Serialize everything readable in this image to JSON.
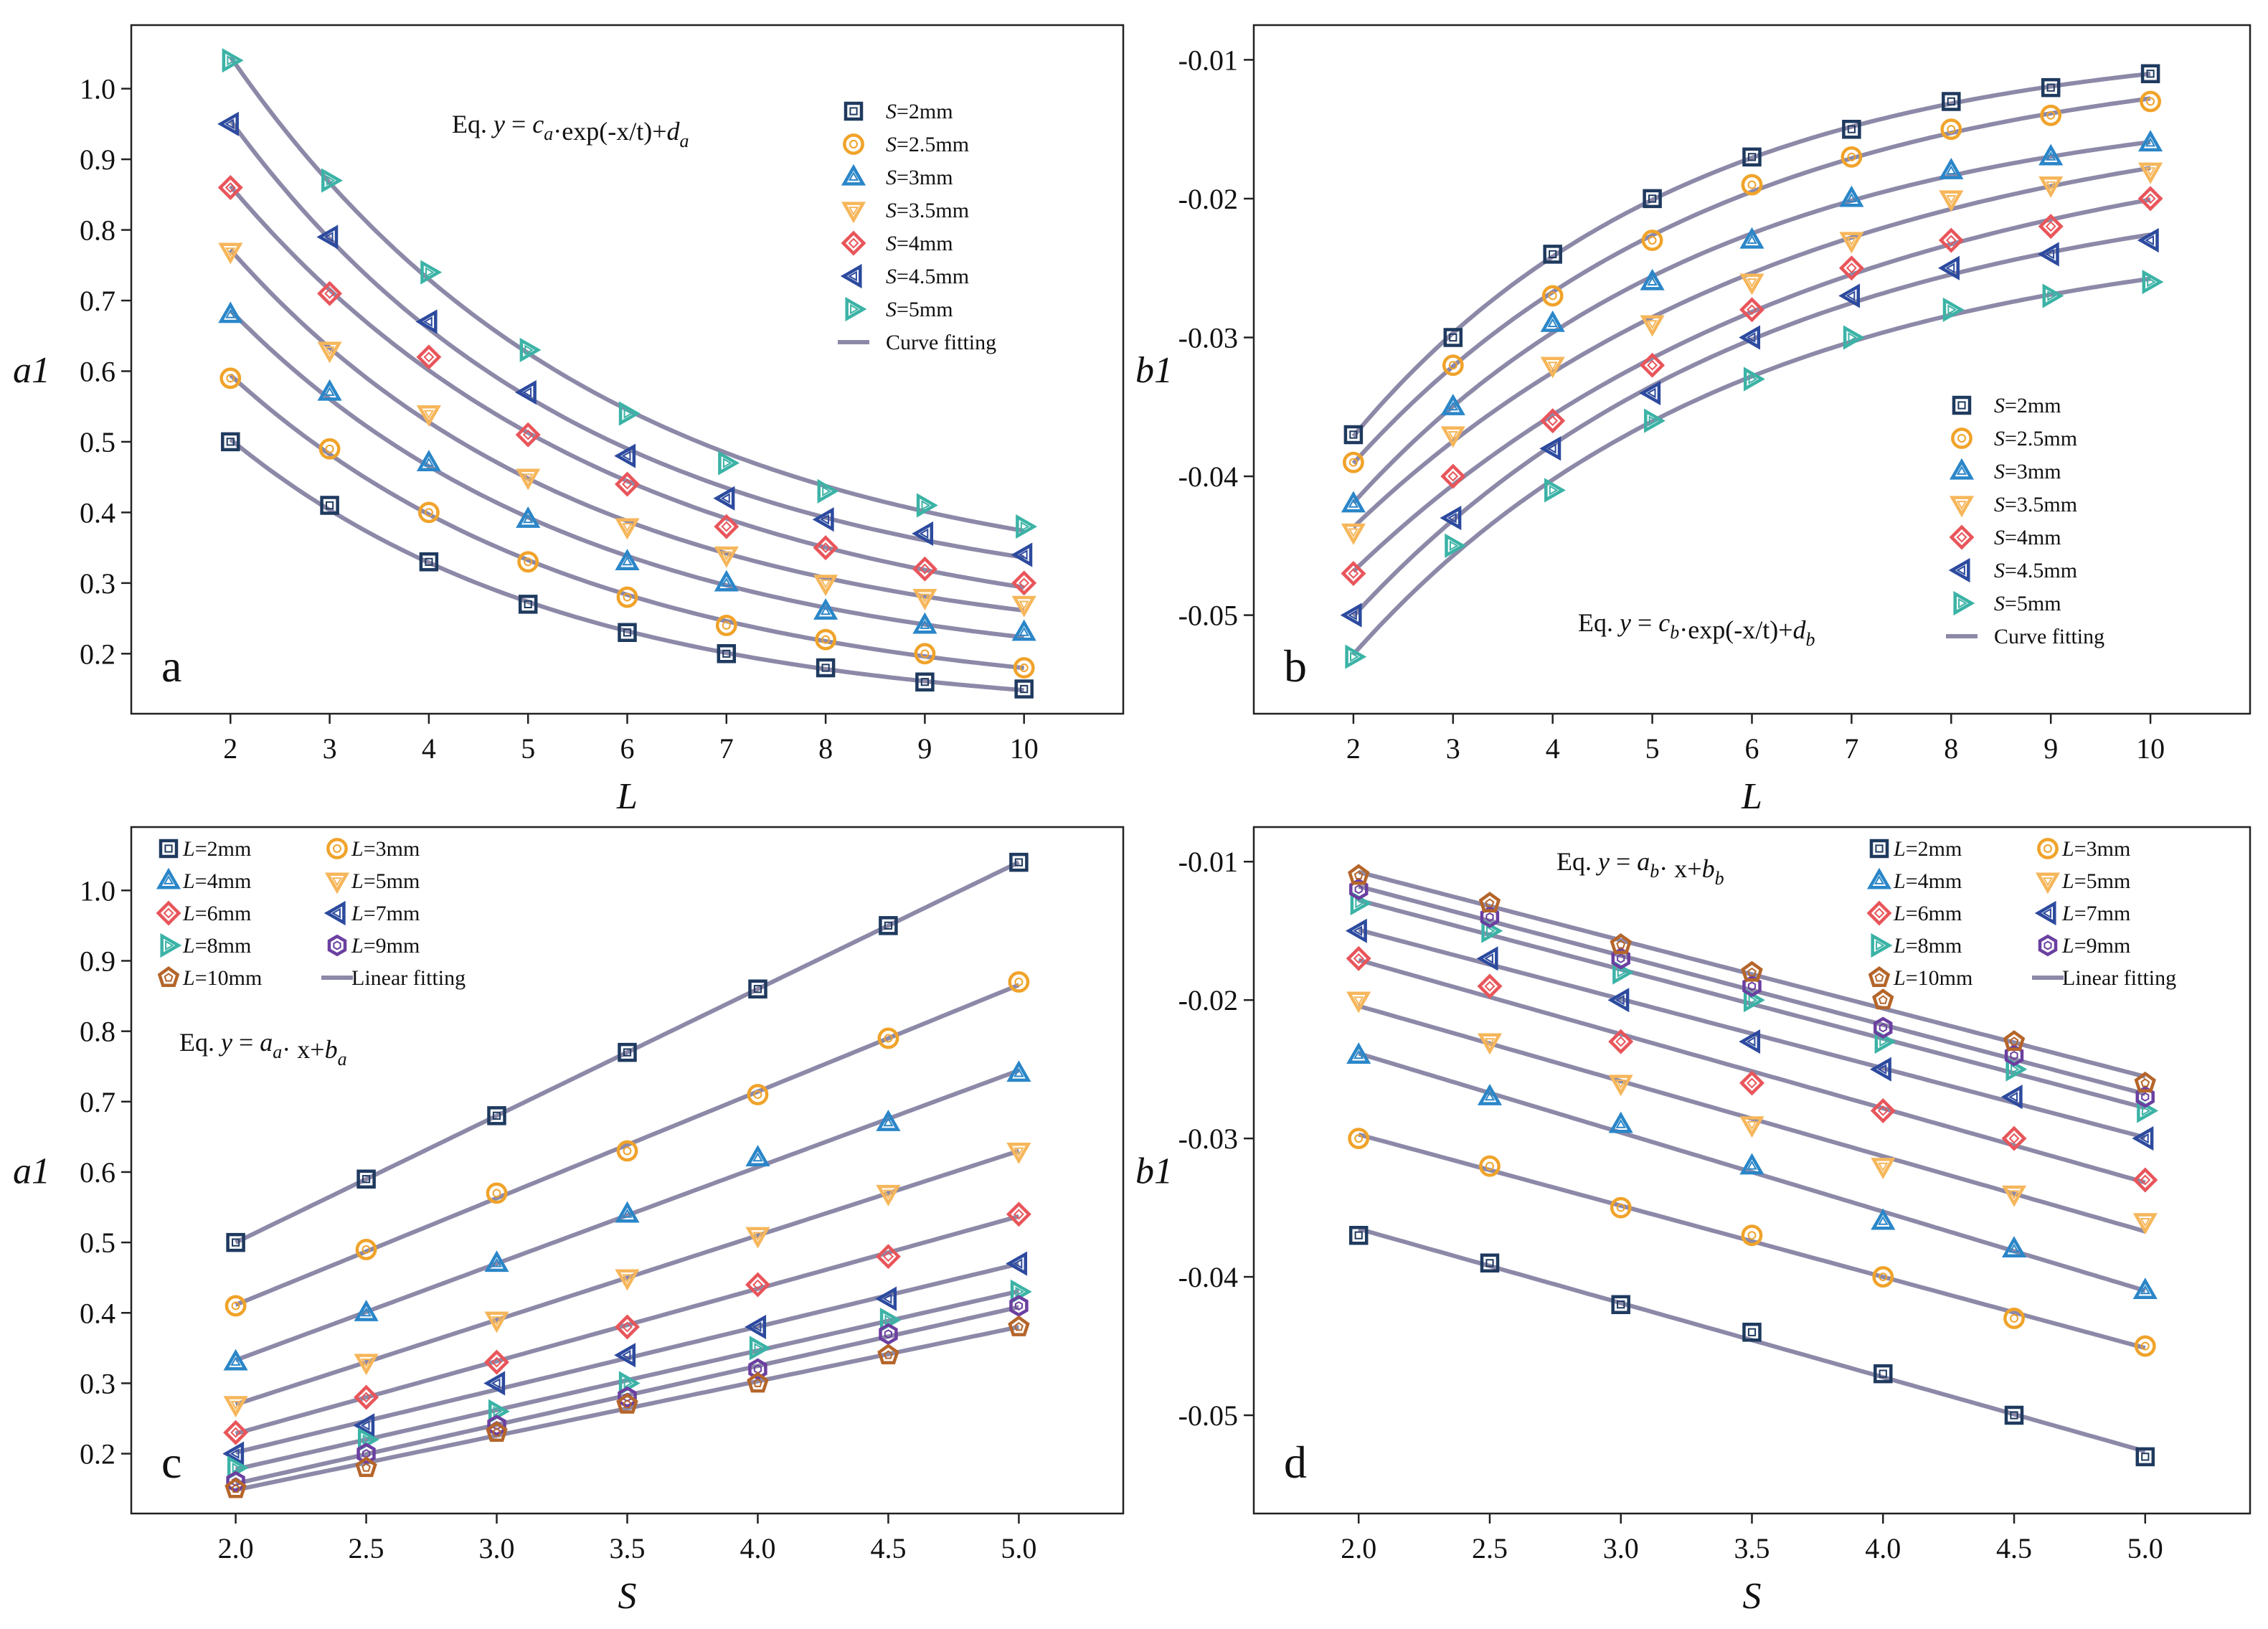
{
  "chart_data": [
    {
      "id": "a",
      "type": "scatter",
      "letter": "a",
      "xlabel": "L",
      "ylabel": "a1",
      "xlim": [
        1,
        11
      ],
      "ylim": [
        0.115,
        1.09
      ],
      "xticks": [
        "2",
        "3",
        "4",
        "5",
        "6",
        "7",
        "8",
        "9",
        "10"
      ],
      "yticks": [
        "0.2",
        "0.3",
        "0.4",
        "0.5",
        "0.6",
        "0.7",
        "0.8",
        "0.9",
        "1.0"
      ],
      "equation": {
        "prefix": "Eq.",
        "y": "y",
        "eq": " = ",
        "c": "c",
        "csub": "a",
        "mid": "·exp(-x/t)+",
        "d": "d",
        "dsub": "a"
      },
      "fit": "exp",
      "fit_label": "Curve fitting",
      "legend_position": "top-right",
      "x": [
        2,
        3,
        4,
        5,
        6,
        7,
        8,
        9,
        10
      ],
      "series": [
        {
          "name": "S=2mm",
          "pre": "S",
          "suf": "=2mm",
          "marker": "square",
          "color": "#1f3a5f",
          "values": [
            0.5,
            0.41,
            0.33,
            0.27,
            0.23,
            0.2,
            0.18,
            0.16,
            0.15
          ]
        },
        {
          "name": "S=2.5mm",
          "pre": "S",
          "suf": "=2.5mm",
          "marker": "circle",
          "color": "#f0a32a",
          "values": [
            0.59,
            0.49,
            0.4,
            0.33,
            0.28,
            0.24,
            0.22,
            0.2,
            0.18
          ]
        },
        {
          "name": "S=3mm",
          "pre": "S",
          "suf": "=3mm",
          "marker": "triangle-up",
          "color": "#2a86c8",
          "values": [
            0.68,
            0.57,
            0.47,
            0.39,
            0.33,
            0.3,
            0.26,
            0.24,
            0.23
          ]
        },
        {
          "name": "S=3.5mm",
          "pre": "S",
          "suf": "=3.5mm",
          "marker": "triangle-down",
          "color": "#f6b65a",
          "values": [
            0.77,
            0.63,
            0.54,
            0.45,
            0.38,
            0.34,
            0.3,
            0.28,
            0.27
          ]
        },
        {
          "name": "S=4mm",
          "pre": "S",
          "suf": "=4mm",
          "marker": "diamond",
          "color": "#e8555a",
          "values": [
            0.86,
            0.71,
            0.62,
            0.51,
            0.44,
            0.38,
            0.35,
            0.32,
            0.3
          ]
        },
        {
          "name": "S=4.5mm",
          "pre": "S",
          "suf": "=4.5mm",
          "marker": "triangle-left",
          "color": "#2c4a9e",
          "values": [
            0.95,
            0.79,
            0.67,
            0.57,
            0.48,
            0.42,
            0.39,
            0.37,
            0.34
          ]
        },
        {
          "name": "S=5mm",
          "pre": "S",
          "suf": "=5mm",
          "marker": "triangle-right",
          "color": "#3bb3a6",
          "values": [
            1.04,
            0.87,
            0.74,
            0.63,
            0.54,
            0.47,
            0.43,
            0.41,
            0.38
          ]
        }
      ]
    },
    {
      "id": "b",
      "type": "scatter",
      "letter": "b",
      "xlabel": "L",
      "ylabel": "b1",
      "xlim": [
        1,
        11
      ],
      "ylim": [
        -0.0571,
        -0.0075
      ],
      "xticks": [
        "2",
        "3",
        "4",
        "5",
        "6",
        "7",
        "8",
        "9",
        "10"
      ],
      "yticks": [
        "-0.05",
        "-0.04",
        "-0.03",
        "-0.02",
        "-0.01"
      ],
      "equation": {
        "prefix": "Eq.",
        "y": "y",
        "eq": " = ",
        "c": "c",
        "csub": "b",
        "mid": "·exp(-x/t)+",
        "d": "d",
        "dsub": "b"
      },
      "fit": "exp",
      "fit_label": "Curve fitting",
      "legend_position": "bottom-right",
      "x": [
        2,
        3,
        4,
        5,
        6,
        7,
        8,
        9,
        10
      ],
      "series": [
        {
          "name": "S=2mm",
          "pre": "S",
          "suf": "=2mm",
          "marker": "square",
          "color": "#1f3a5f",
          "values": [
            -0.037,
            -0.03,
            -0.024,
            -0.02,
            -0.017,
            -0.015,
            -0.013,
            -0.012,
            -0.011
          ]
        },
        {
          "name": "S=2.5mm",
          "pre": "S",
          "suf": "=2.5mm",
          "marker": "circle",
          "color": "#f0a32a",
          "values": [
            -0.039,
            -0.032,
            -0.027,
            -0.023,
            -0.019,
            -0.017,
            -0.015,
            -0.014,
            -0.013
          ]
        },
        {
          "name": "S=3mm",
          "pre": "S",
          "suf": "=3mm",
          "marker": "triangle-up",
          "color": "#2a86c8",
          "values": [
            -0.042,
            -0.035,
            -0.029,
            -0.026,
            -0.023,
            -0.02,
            -0.018,
            -0.017,
            -0.016
          ]
        },
        {
          "name": "S=3.5mm",
          "pre": "S",
          "suf": "=3.5mm",
          "marker": "triangle-down",
          "color": "#f6b65a",
          "values": [
            -0.044,
            -0.037,
            -0.032,
            -0.029,
            -0.026,
            -0.023,
            -0.02,
            -0.019,
            -0.018
          ]
        },
        {
          "name": "S=4mm",
          "pre": "S",
          "suf": "=4mm",
          "marker": "diamond",
          "color": "#e8555a",
          "values": [
            -0.047,
            -0.04,
            -0.036,
            -0.032,
            -0.028,
            -0.025,
            -0.023,
            -0.022,
            -0.02
          ]
        },
        {
          "name": "S=4.5mm",
          "pre": "S",
          "suf": "=4.5mm",
          "marker": "triangle-left",
          "color": "#2c4a9e",
          "values": [
            -0.05,
            -0.043,
            -0.038,
            -0.034,
            -0.03,
            -0.027,
            -0.025,
            -0.024,
            -0.023
          ]
        },
        {
          "name": "S=5mm",
          "pre": "S",
          "suf": "=5mm",
          "marker": "triangle-right",
          "color": "#3bb3a6",
          "values": [
            -0.053,
            -0.045,
            -0.041,
            -0.036,
            -0.033,
            -0.03,
            -0.028,
            -0.027,
            -0.026
          ]
        }
      ]
    },
    {
      "id": "c",
      "type": "scatter",
      "letter": "c",
      "xlabel": "S",
      "ylabel": "a1",
      "xlim": [
        1.6,
        5.4
      ],
      "ylim": [
        0.115,
        1.09
      ],
      "xticks": [
        "2.0",
        "2.5",
        "3.0",
        "3.5",
        "4.0",
        "4.5",
        "5.0"
      ],
      "yticks": [
        "0.2",
        "0.3",
        "0.4",
        "0.5",
        "0.6",
        "0.7",
        "0.8",
        "0.9",
        "1.0"
      ],
      "equation": {
        "prefix": "Eq.",
        "y": "y",
        "eq": " = ",
        "c": "a",
        "csub": "a",
        "mid": "· x+",
        "d": "b",
        "dsub": "a"
      },
      "fit": "linear",
      "fit_label": "Linear fitting",
      "legend_position": "top-left",
      "x": [
        2.0,
        2.5,
        3.0,
        3.5,
        4.0,
        4.5,
        5.0
      ],
      "series": [
        {
          "name": "L=2mm",
          "pre": "L",
          "suf": "=2mm",
          "marker": "square",
          "color": "#1f3a5f",
          "values": [
            0.5,
            0.59,
            0.68,
            0.77,
            0.86,
            0.95,
            1.04
          ]
        },
        {
          "name": "L=3mm",
          "pre": "L",
          "suf": "=3mm",
          "marker": "circle",
          "color": "#f0a32a",
          "values": [
            0.41,
            0.49,
            0.57,
            0.63,
            0.71,
            0.79,
            0.87
          ]
        },
        {
          "name": "L=4mm",
          "pre": "L",
          "suf": "=4mm",
          "marker": "triangle-up",
          "color": "#2a86c8",
          "values": [
            0.33,
            0.4,
            0.47,
            0.54,
            0.62,
            0.67,
            0.74
          ]
        },
        {
          "name": "L=5mm",
          "pre": "L",
          "suf": "=5mm",
          "marker": "triangle-down",
          "color": "#f6b65a",
          "values": [
            0.27,
            0.33,
            0.39,
            0.45,
            0.51,
            0.57,
            0.63
          ]
        },
        {
          "name": "L=6mm",
          "pre": "L",
          "suf": "=6mm",
          "marker": "diamond",
          "color": "#e8555a",
          "values": [
            0.23,
            0.28,
            0.33,
            0.38,
            0.44,
            0.48,
            0.54
          ]
        },
        {
          "name": "L=7mm",
          "pre": "L",
          "suf": "=7mm",
          "marker": "triangle-left",
          "color": "#2c4a9e",
          "values": [
            0.2,
            0.24,
            0.3,
            0.34,
            0.38,
            0.42,
            0.47
          ]
        },
        {
          "name": "L=8mm",
          "pre": "L",
          "suf": "=8mm",
          "marker": "triangle-right",
          "color": "#3bb3a6",
          "values": [
            0.18,
            0.22,
            0.26,
            0.3,
            0.35,
            0.39,
            0.43
          ]
        },
        {
          "name": "L=9mm",
          "pre": "L",
          "suf": "=9mm",
          "marker": "hexagon",
          "color": "#6b3fa0",
          "values": [
            0.16,
            0.2,
            0.24,
            0.28,
            0.32,
            0.37,
            0.41
          ]
        },
        {
          "name": "L=10mm",
          "pre": "L",
          "suf": "=10mm",
          "marker": "pentagon",
          "color": "#b5652a",
          "values": [
            0.15,
            0.18,
            0.23,
            0.27,
            0.3,
            0.34,
            0.38
          ]
        }
      ]
    },
    {
      "id": "d",
      "type": "scatter",
      "letter": "d",
      "xlabel": "S",
      "ylabel": "b1",
      "xlim": [
        1.6,
        5.4
      ],
      "ylim": [
        -0.0571,
        -0.0075
      ],
      "xticks": [
        "2.0",
        "2.5",
        "3.0",
        "3.5",
        "4.0",
        "4.5",
        "5.0"
      ],
      "yticks": [
        "-0.05",
        "-0.04",
        "-0.03",
        "-0.02",
        "-0.01"
      ],
      "equation": {
        "prefix": "Eq.",
        "y": "y",
        "eq": " = ",
        "c": "a",
        "csub": "b",
        "mid": "· x+",
        "d": "b",
        "dsub": "b"
      },
      "fit": "linear",
      "fit_label": "Linear fitting",
      "legend_position": "top-right",
      "x": [
        2.0,
        2.5,
        3.0,
        3.5,
        4.0,
        4.5,
        5.0
      ],
      "series": [
        {
          "name": "L=2mm",
          "pre": "L",
          "suf": "=2mm",
          "marker": "square",
          "color": "#1f3a5f",
          "values": [
            -0.037,
            -0.039,
            -0.042,
            -0.044,
            -0.047,
            -0.05,
            -0.053
          ]
        },
        {
          "name": "L=3mm",
          "pre": "L",
          "suf": "=3mm",
          "marker": "circle",
          "color": "#f0a32a",
          "values": [
            -0.03,
            -0.032,
            -0.035,
            -0.037,
            -0.04,
            -0.043,
            -0.045
          ]
        },
        {
          "name": "L=4mm",
          "pre": "L",
          "suf": "=4mm",
          "marker": "triangle-up",
          "color": "#2a86c8",
          "values": [
            -0.024,
            -0.027,
            -0.029,
            -0.032,
            -0.036,
            -0.038,
            -0.041
          ]
        },
        {
          "name": "L=5mm",
          "pre": "L",
          "suf": "=5mm",
          "marker": "triangle-down",
          "color": "#f6b65a",
          "values": [
            -0.02,
            -0.023,
            -0.026,
            -0.029,
            -0.032,
            -0.034,
            -0.036
          ]
        },
        {
          "name": "L=6mm",
          "pre": "L",
          "suf": "=6mm",
          "marker": "diamond",
          "color": "#e8555a",
          "values": [
            -0.017,
            -0.019,
            -0.023,
            -0.026,
            -0.028,
            -0.03,
            -0.033
          ]
        },
        {
          "name": "L=7mm",
          "pre": "L",
          "suf": "=7mm",
          "marker": "triangle-left",
          "color": "#2c4a9e",
          "values": [
            -0.015,
            -0.017,
            -0.02,
            -0.023,
            -0.025,
            -0.027,
            -0.03
          ]
        },
        {
          "name": "L=8mm",
          "pre": "L",
          "suf": "=8mm",
          "marker": "triangle-right",
          "color": "#3bb3a6",
          "values": [
            -0.013,
            -0.015,
            -0.018,
            -0.02,
            -0.023,
            -0.025,
            -0.028
          ]
        },
        {
          "name": "L=9mm",
          "pre": "L",
          "suf": "=9mm",
          "marker": "hexagon",
          "color": "#6b3fa0",
          "values": [
            -0.012,
            -0.014,
            -0.017,
            -0.019,
            -0.022,
            -0.024,
            -0.027
          ]
        },
        {
          "name": "L=10mm",
          "pre": "L",
          "suf": "=10mm",
          "marker": "pentagon",
          "color": "#b5652a",
          "values": [
            -0.011,
            -0.013,
            -0.016,
            -0.018,
            -0.02,
            -0.023,
            -0.026
          ]
        }
      ]
    }
  ]
}
